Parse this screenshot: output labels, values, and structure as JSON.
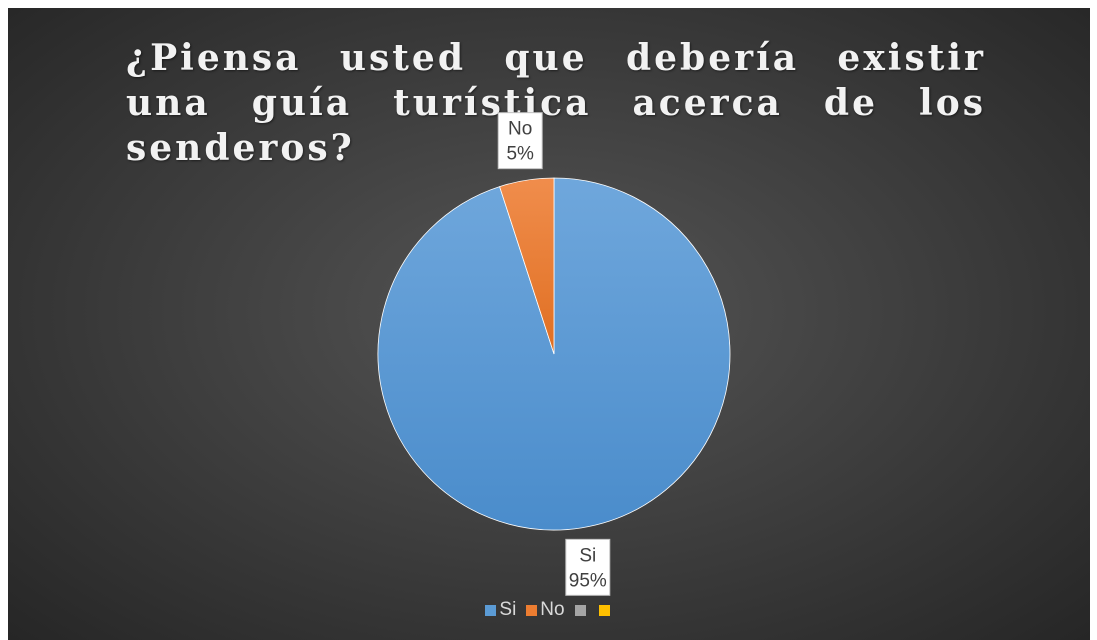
{
  "chart_data": {
    "type": "pie",
    "title": "¿Piensa usted que debería existir una guía turística acerca de los senderos?",
    "slices": [
      {
        "label": "Si",
        "value": 95,
        "value_label": "95%",
        "color": "#5b9bd5"
      },
      {
        "label": "No",
        "value": 5,
        "value_label": "5%",
        "color": "#ed7d31"
      }
    ],
    "legend": {
      "position": "bottom",
      "entries": [
        {
          "label": "Si",
          "color": "#5b9bd5"
        },
        {
          "label": "No",
          "color": "#ed7d31"
        },
        {
          "label": "",
          "color": "#a5a5a5"
        },
        {
          "label": "",
          "color": "#ffc000"
        }
      ]
    },
    "start_angle_deg": 0,
    "direction": "clockwise"
  }
}
